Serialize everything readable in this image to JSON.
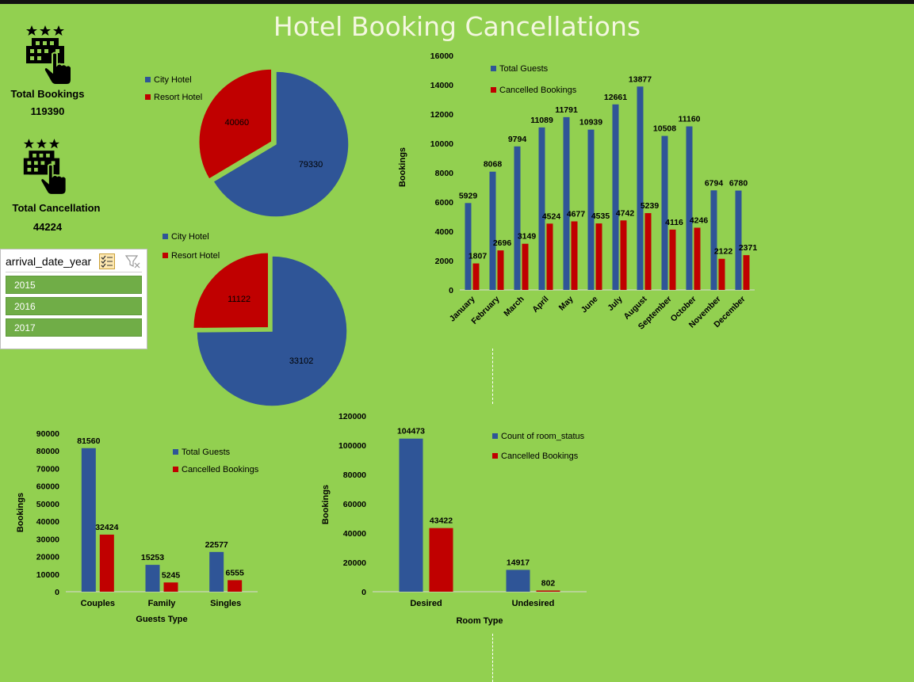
{
  "title": "Hotel Booking Cancellations",
  "kpis": {
    "total_bookings_label": "Total Bookings",
    "total_bookings_value": "119390",
    "total_cancellation_label": "Total Cancellation",
    "total_cancellation_value": "44224"
  },
  "slicer": {
    "header": "arrival_date_year",
    "items": [
      "2015",
      "2016",
      "2017"
    ]
  },
  "colors": {
    "blue": "#2f5597",
    "red": "#c00000",
    "background": "#92d050"
  },
  "chart_data": [
    {
      "type": "pie",
      "legend": [
        "City Hotel",
        "Resort Hotel"
      ],
      "values": [
        79330,
        40060
      ],
      "labels": [
        "79330",
        "40060"
      ]
    },
    {
      "type": "pie",
      "legend": [
        "City Hotel",
        "Resort Hotel"
      ],
      "values": [
        33102,
        11122
      ],
      "labels": [
        "33102",
        "11122"
      ]
    },
    {
      "type": "bar",
      "ylabel": "Bookings",
      "ylim": [
        0,
        16000
      ],
      "yticks": [
        "0",
        "2000",
        "4000",
        "6000",
        "8000",
        "10000",
        "12000",
        "14000",
        "16000"
      ],
      "categories": [
        "January",
        "February",
        "March",
        "April",
        "May",
        "June",
        "July",
        "August",
        "September",
        "October",
        "November",
        "December"
      ],
      "series": [
        {
          "name": "Total Guests",
          "values": [
            5929,
            8068,
            9794,
            11089,
            11791,
            10939,
            12661,
            13877,
            10508,
            11160,
            6794,
            6780
          ]
        },
        {
          "name": "Cancelled Bookings",
          "values": [
            1807,
            2696,
            3149,
            4524,
            4677,
            4535,
            4742,
            5239,
            4116,
            4246,
            2122,
            2371
          ]
        }
      ],
      "legend_position": "top-left"
    },
    {
      "type": "bar",
      "xlabel": "Guests Type",
      "ylabel": "Bookings",
      "ylim": [
        0,
        90000
      ],
      "yticks": [
        "0",
        "10000",
        "20000",
        "30000",
        "40000",
        "50000",
        "60000",
        "70000",
        "80000",
        "90000"
      ],
      "categories": [
        "Couples",
        "Family",
        "Singles"
      ],
      "series": [
        {
          "name": "Total Guests",
          "values": [
            81560,
            15253,
            22577
          ]
        },
        {
          "name": "Cancelled Bookings",
          "values": [
            32424,
            5245,
            6555
          ]
        }
      ],
      "legend_position": "top-right"
    },
    {
      "type": "bar",
      "xlabel": "Room Type",
      "ylabel": "Bookings",
      "ylim": [
        0,
        120000
      ],
      "yticks": [
        "0",
        "20000",
        "40000",
        "60000",
        "80000",
        "100000",
        "120000"
      ],
      "categories": [
        "Desired",
        "Undesired"
      ],
      "series": [
        {
          "name": "Count of room_status",
          "values": [
            104473,
            14917
          ]
        },
        {
          "name": "Cancelled Bookings",
          "values": [
            43422,
            802
          ]
        }
      ],
      "legend_position": "top-right"
    }
  ]
}
